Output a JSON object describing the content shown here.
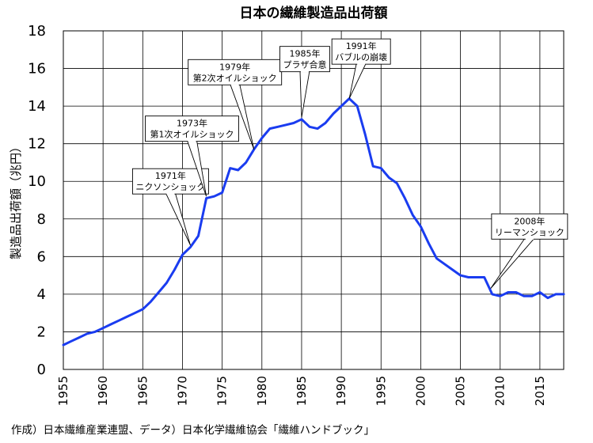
{
  "chart_data": {
    "type": "line",
    "title": "日本の繊維製造品出荷額",
    "xlabel": "",
    "ylabel": "製造品出荷額（兆円）",
    "xlim": [
      1955,
      2018
    ],
    "ylim": [
      0,
      18
    ],
    "y_ticks": [
      "0",
      "2",
      "4",
      "6",
      "8",
      "10",
      "12",
      "14",
      "16",
      "18"
    ],
    "x_ticks": [
      "1955",
      "1960",
      "1965",
      "1970",
      "1975",
      "1980",
      "1985",
      "1990",
      "1995",
      "2000",
      "2005",
      "2010",
      "2015"
    ],
    "grid": true,
    "line_color": "#1a3cf0",
    "series": [
      {
        "x": [
          1955,
          1956,
          1957,
          1958,
          1959,
          1960,
          1961,
          1962,
          1963,
          1964,
          1965,
          1966,
          1967,
          1968,
          1969,
          1970,
          1971,
          1972,
          1973,
          1974,
          1975,
          1976,
          1977,
          1978,
          1979,
          1980,
          1981,
          1982,
          1983,
          1984,
          1985,
          1986,
          1987,
          1988,
          1989,
          1990,
          1991,
          1992,
          1993,
          1994,
          1995,
          1996,
          1997,
          1998,
          1999,
          2000,
          2001,
          2002,
          2003,
          2004,
          2005,
          2006,
          2007,
          2008,
          2009,
          2010,
          2011,
          2012,
          2013,
          2014,
          2015,
          2016,
          2017,
          2018
        ],
        "values": [
          1.3,
          1.5,
          1.7,
          1.9,
          2.0,
          2.2,
          2.4,
          2.6,
          2.8,
          3.0,
          3.2,
          3.6,
          4.1,
          4.6,
          5.3,
          6.1,
          6.5,
          7.1,
          9.1,
          9.2,
          9.4,
          10.7,
          10.6,
          11.0,
          11.7,
          12.3,
          12.8,
          12.9,
          13.0,
          13.1,
          13.3,
          12.9,
          12.8,
          13.1,
          13.6,
          14.0,
          14.4,
          14.0,
          12.5,
          10.8,
          10.7,
          10.2,
          9.9,
          9.1,
          8.2,
          7.6,
          6.7,
          5.9,
          5.6,
          5.3,
          5.0,
          4.9,
          4.9,
          4.9,
          4.0,
          3.9,
          4.1,
          4.1,
          3.9,
          3.9,
          4.1,
          3.8,
          4.0,
          4.0
        ]
      }
    ],
    "annotations": [
      {
        "year_label": "1971年",
        "text": "ニクソンショック",
        "x": 1971,
        "y": 6.6,
        "box_x": 1968.5,
        "box_y": 10.0
      },
      {
        "year_label": "1973年",
        "text": "第1次オイルショック",
        "x": 1973,
        "y": 9.2,
        "box_x": 1971.2,
        "box_y": 12.8
      },
      {
        "year_label": "1979年",
        "text": "第2次オイルショック",
        "x": 1979,
        "y": 11.7,
        "box_x": 1976.6,
        "box_y": 15.8
      },
      {
        "year_label": "1985年",
        "text": "プラザ合意",
        "x": 1985,
        "y": 13.4,
        "box_x": 1985.4,
        "box_y": 16.5
      },
      {
        "year_label": "1991年",
        "text": "バブルの崩壊",
        "x": 1991,
        "y": 14.4,
        "box_x": 1992.5,
        "box_y": 16.9
      },
      {
        "year_label": "2008年",
        "text": "リーマンショック",
        "x": 2008.8,
        "y": 4.3,
        "box_x": 2013.7,
        "box_y": 7.6
      }
    ],
    "source_note": "作成）日本繊維産業連盟、データ）日本化学繊維協会「繊維ハンドブック」"
  }
}
